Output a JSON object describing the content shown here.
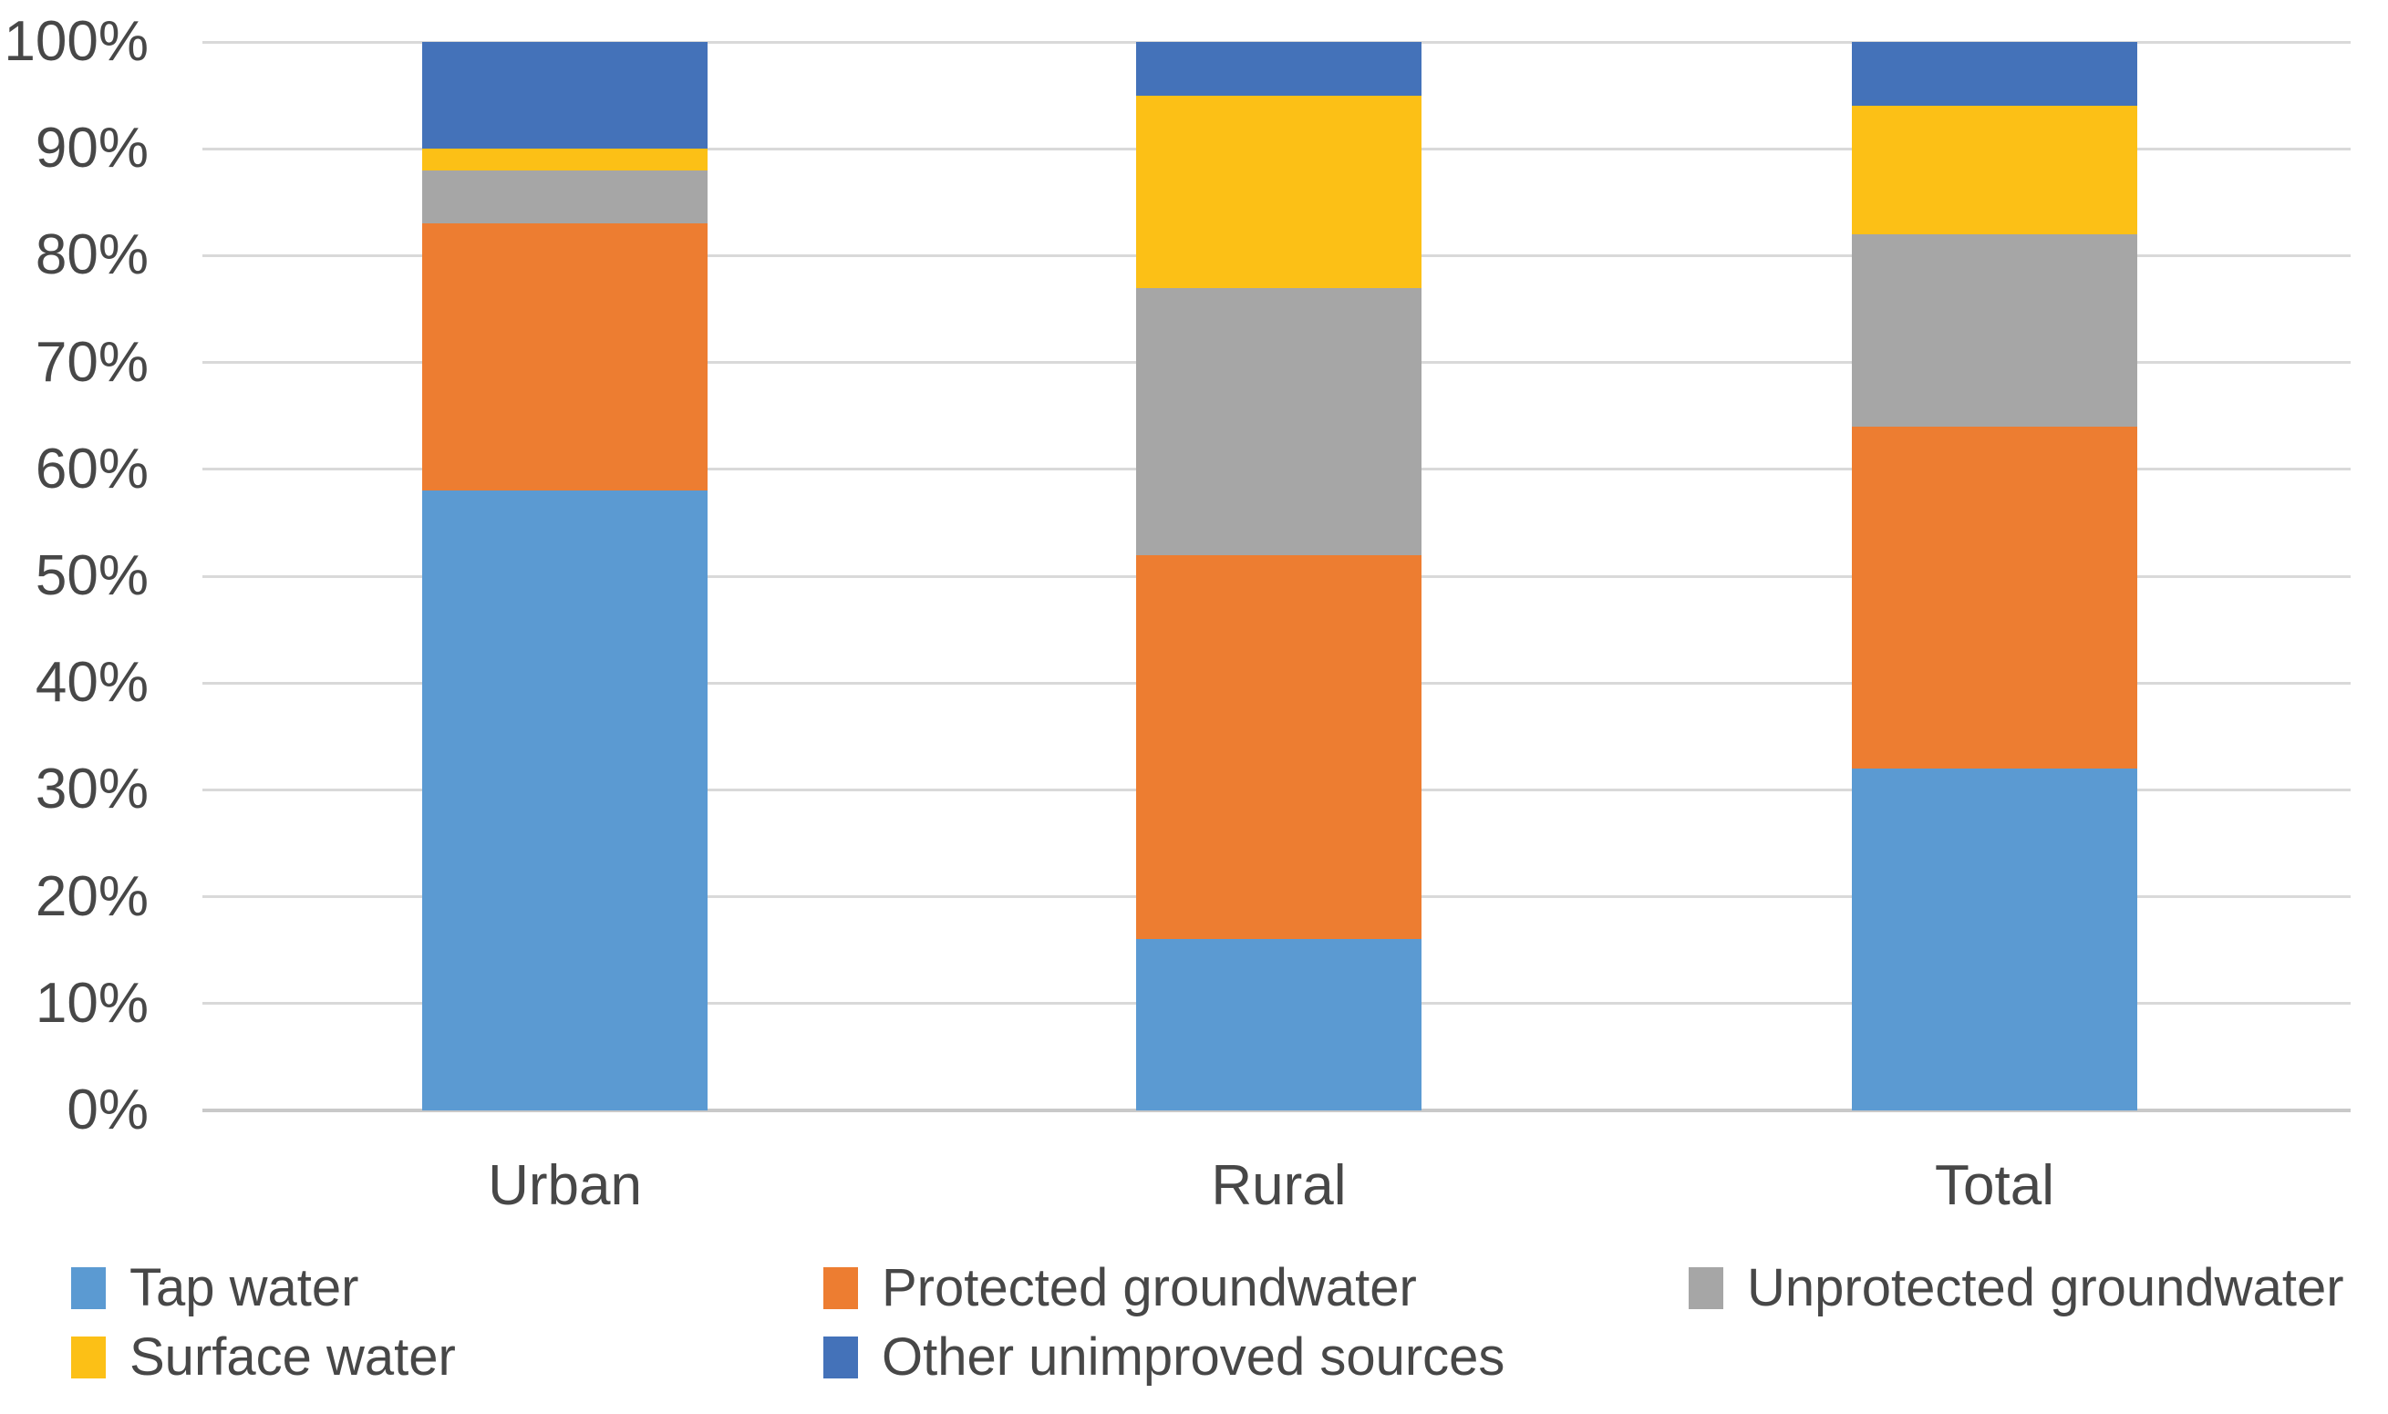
{
  "chart_data": {
    "type": "bar",
    "variant": "stacked-100-percent-column",
    "title": "",
    "categories": [
      "Urban",
      "Rural",
      "Total"
    ],
    "series": [
      {
        "name": "Tap water",
        "color": "#5b9ad2",
        "values": [
          58,
          16,
          32
        ]
      },
      {
        "name": "Protected groundwater",
        "color": "#ed7d31",
        "values": [
          25,
          36,
          32
        ]
      },
      {
        "name": "Unprotected groundwater",
        "color": "#a6a6a6",
        "values": [
          5,
          25,
          18
        ]
      },
      {
        "name": "Surface water",
        "color": "#fcc016",
        "values": [
          2,
          18,
          12
        ]
      },
      {
        "name": "Other unimproved sources",
        "color": "#4472b9",
        "values": [
          10,
          5,
          6
        ]
      }
    ],
    "y_axis": {
      "min": 0,
      "max": 100,
      "step": 10,
      "tick_labels": [
        "0%",
        "10%",
        "20%",
        "30%",
        "40%",
        "50%",
        "60%",
        "70%",
        "80%",
        "90%",
        "100%"
      ]
    },
    "grid": true,
    "legend_position": "bottom",
    "legend_rows": [
      [
        "Tap water",
        "Protected groundwater",
        "Unprotected groundwater"
      ],
      [
        "Surface water",
        "Other unimproved sources"
      ]
    ],
    "colors": {
      "gridline": "#d9d9d9",
      "axis_line": "#c9c9c9",
      "text": "#474747",
      "background": "#ffffff"
    }
  }
}
